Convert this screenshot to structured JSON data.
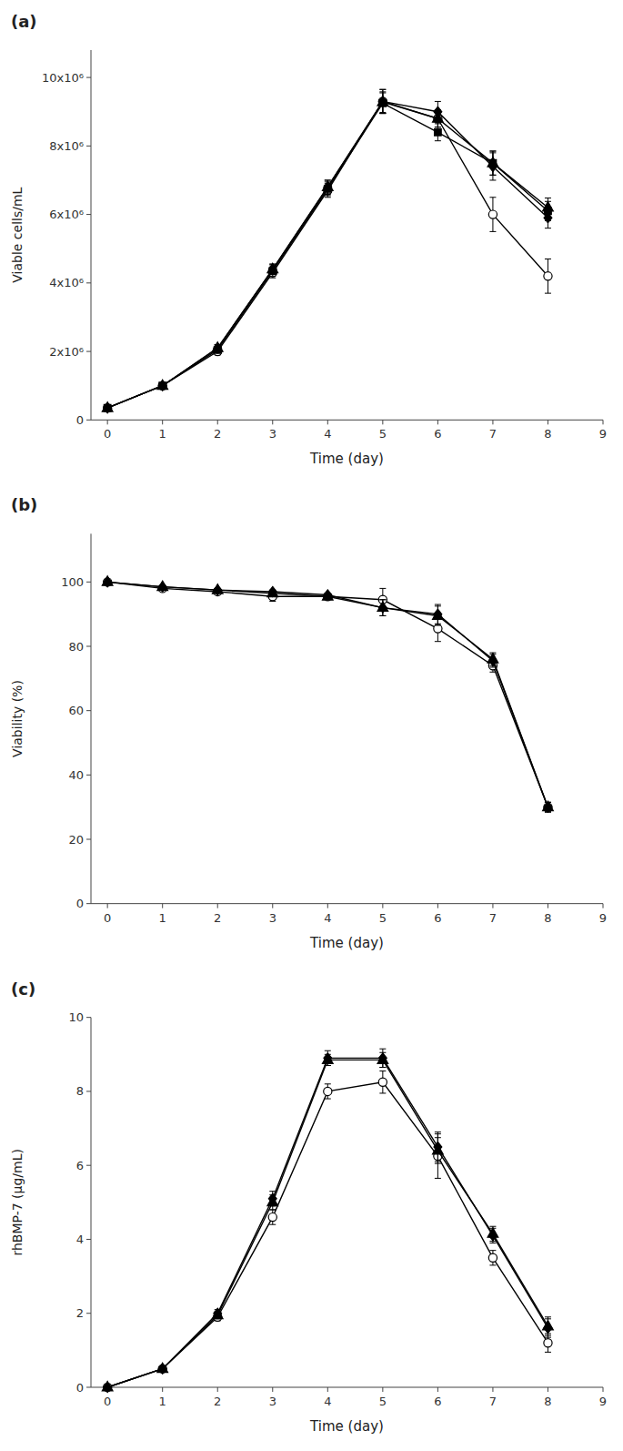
{
  "chart_data": [
    {
      "type": "line",
      "title": "(a)",
      "xlabel": "Time (day)",
      "ylabel": "Viable cells/mL",
      "x": [
        0,
        1,
        2,
        3,
        4,
        5,
        6,
        7,
        8
      ],
      "xlim": [
        -0.3,
        9
      ],
      "xticks": [
        0,
        1,
        2,
        3,
        4,
        5,
        6,
        7,
        8,
        9
      ],
      "ylim": [
        0,
        10800000
      ],
      "yticks": [
        0,
        {
          "value": 2000000,
          "label": "2x10⁶"
        },
        {
          "value": 4000000,
          "label": "4x10⁶"
        },
        {
          "value": 6000000,
          "label": "6x10⁶"
        },
        {
          "value": 8000000,
          "label": "8x10⁶"
        },
        {
          "value": 10000000,
          "label": "10x10⁶"
        }
      ],
      "grid": false,
      "series": [
        {
          "marker": "diamond",
          "color": "black",
          "values": [
            350000,
            1000000,
            2100000,
            4400000,
            6800000,
            9300000,
            9000000,
            7400000,
            5900000
          ],
          "errors": [
            50000,
            80000,
            100000,
            150000,
            200000,
            350000,
            300000,
            400000,
            300000
          ]
        },
        {
          "marker": "triangle",
          "color": "black",
          "values": [
            350000,
            1000000,
            2100000,
            4400000,
            6800000,
            9280000,
            8800000,
            7500000,
            6200000
          ],
          "errors": [
            50000,
            80000,
            100000,
            150000,
            200000,
            300000,
            250000,
            350000,
            280000
          ]
        },
        {
          "marker": "square",
          "color": "black",
          "values": [
            350000,
            1000000,
            2050000,
            4350000,
            6750000,
            9250000,
            8400000,
            7500000,
            6100000
          ],
          "errors": [
            50000,
            80000,
            100000,
            150000,
            200000,
            300000,
            250000,
            350000,
            280000
          ]
        },
        {
          "marker": "open-circle",
          "color": "black",
          "values": [
            350000,
            1000000,
            2000000,
            4300000,
            6700000,
            9300000,
            8800000,
            6000000,
            4200000
          ],
          "errors": [
            50000,
            80000,
            100000,
            150000,
            200000,
            350000,
            250000,
            500000,
            500000
          ]
        }
      ]
    },
    {
      "type": "line",
      "title": "(b)",
      "xlabel": "Time (day)",
      "ylabel": "Viability (%)",
      "x": [
        0,
        1,
        2,
        3,
        4,
        5,
        6,
        7,
        8
      ],
      "xlim": [
        -0.3,
        9
      ],
      "xticks": [
        0,
        1,
        2,
        3,
        4,
        5,
        6,
        7,
        8,
        9
      ],
      "ylim": [
        0,
        115
      ],
      "yticks": [
        0,
        20,
        40,
        60,
        80,
        100
      ],
      "grid": false,
      "series": [
        {
          "marker": "diamond",
          "color": "black",
          "values": [
            100,
            98.5,
            97.5,
            97.0,
            96.0,
            92.0,
            90.0,
            75.5,
            30.0
          ],
          "errors": [
            0.2,
            0.3,
            0.5,
            0.5,
            0.5,
            2.5,
            3.0,
            2.0,
            1.5
          ]
        },
        {
          "marker": "triangle",
          "color": "black",
          "values": [
            100,
            98.5,
            97.5,
            96.5,
            95.5,
            92.0,
            89.5,
            76.0,
            30.0
          ],
          "errors": [
            0.2,
            0.3,
            0.5,
            0.5,
            0.5,
            2.5,
            3.0,
            2.0,
            1.5
          ]
        },
        {
          "marker": "open-circle",
          "color": "black",
          "values": [
            100,
            98.0,
            97.0,
            95.5,
            95.5,
            94.5,
            85.5,
            74.0,
            30.0
          ],
          "errors": [
            0.2,
            0.5,
            0.5,
            1.5,
            0.5,
            3.5,
            4.0,
            2.0,
            1.5
          ]
        }
      ]
    },
    {
      "type": "line",
      "title": "(c)",
      "xlabel": "Time (day)",
      "ylabel": "rhBMP-7 (μg/mL)",
      "x": [
        0,
        1,
        2,
        3,
        4,
        5,
        6,
        7,
        8
      ],
      "xlim": [
        -0.3,
        9
      ],
      "xticks": [
        0,
        1,
        2,
        3,
        4,
        5,
        6,
        7,
        8,
        9
      ],
      "ylim": [
        0,
        10
      ],
      "yticks": [
        0,
        2,
        4,
        6,
        8,
        10
      ],
      "grid": false,
      "series": [
        {
          "marker": "diamond",
          "color": "black",
          "values": [
            0,
            0.5,
            2.0,
            5.1,
            8.9,
            8.9,
            6.5,
            4.1,
            1.6
          ],
          "errors": [
            0,
            0.05,
            0.1,
            0.2,
            0.2,
            0.25,
            0.4,
            0.2,
            0.25
          ]
        },
        {
          "marker": "triangle",
          "color": "black",
          "values": [
            0,
            0.5,
            1.95,
            5.0,
            8.85,
            8.85,
            6.4,
            4.15,
            1.65
          ],
          "errors": [
            0,
            0.05,
            0.1,
            0.2,
            0.15,
            0.2,
            0.35,
            0.2,
            0.25
          ]
        },
        {
          "marker": "open-circle",
          "color": "black",
          "values": [
            0,
            0.5,
            1.9,
            4.6,
            8.0,
            8.25,
            6.25,
            3.5,
            1.2
          ],
          "errors": [
            0,
            0.05,
            0.1,
            0.2,
            0.2,
            0.3,
            0.6,
            0.2,
            0.25
          ]
        }
      ]
    }
  ]
}
